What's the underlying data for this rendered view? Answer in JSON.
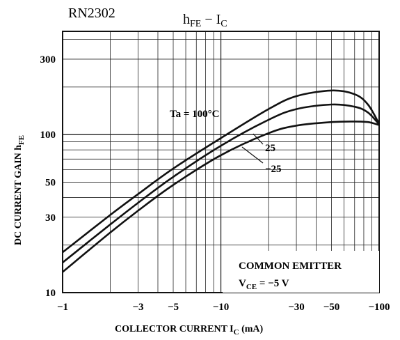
{
  "chart_data": {
    "type": "line",
    "part_number": "RN2302",
    "title": {
      "main": "h",
      "main_sub": "FE",
      "dash": " − ",
      "var": "I",
      "var_sub": "C"
    },
    "xlabel": {
      "text": "COLLECTOR CURRENT  I",
      "sub": "C",
      "unit": "  (mA)"
    },
    "ylabel": {
      "text": "DC CURRENT GAIN   h",
      "sub": "FE"
    },
    "x_scale": "log",
    "y_scale": "log",
    "xlim": [
      -1,
      -100
    ],
    "ylim": [
      10,
      450
    ],
    "x_ticks": [
      {
        "value": -1,
        "label": "−1"
      },
      {
        "value": -3,
        "label": "−3"
      },
      {
        "value": -5,
        "label": "−5"
      },
      {
        "value": -10,
        "label": "−10"
      },
      {
        "value": -30,
        "label": "−30"
      },
      {
        "value": -50,
        "label": "−50"
      },
      {
        "value": -100,
        "label": "−100"
      }
    ],
    "y_ticks": [
      {
        "value": 10,
        "label": "10"
      },
      {
        "value": 30,
        "label": "30"
      },
      {
        "value": 50,
        "label": "50"
      },
      {
        "value": 100,
        "label": "100"
      },
      {
        "value": 300,
        "label": "300"
      }
    ],
    "grid": true,
    "series": [
      {
        "name": "Ta = 100°C",
        "x": [
          -1,
          -2,
          -3,
          -5,
          -10,
          -20,
          -30,
          -50,
          -70,
          -85,
          -100
        ],
        "y": [
          18,
          31,
          42,
          61,
          95,
          145,
          175,
          190,
          180,
          155,
          117
        ]
      },
      {
        "name": "25",
        "x": [
          -1,
          -2,
          -3,
          -5,
          -10,
          -20,
          -30,
          -50,
          -70,
          -85,
          -100
        ],
        "y": [
          15.5,
          27,
          37,
          54,
          85,
          124,
          145,
          155,
          150,
          138,
          116
        ]
      },
      {
        "name": "−25",
        "x": [
          -1,
          -2,
          -3,
          -5,
          -10,
          -20,
          -30,
          -50,
          -70,
          -85,
          -100
        ],
        "y": [
          13.5,
          24,
          33,
          48,
          74,
          102,
          114,
          120,
          121,
          120,
          115
        ]
      }
    ],
    "curve_labels": [
      {
        "series": 0,
        "text": "Ta = 100°C"
      },
      {
        "series": 1,
        "text": "25"
      },
      {
        "series": 2,
        "text": "−25"
      }
    ],
    "legend_box": {
      "line1": "COMMON  EMITTER",
      "line2_pre": "V",
      "line2_sub": "CE",
      "line2_post": " = −5 V"
    }
  },
  "colors": {
    "ink": "#111111",
    "grid": "#222222",
    "background": "#ffffff"
  }
}
